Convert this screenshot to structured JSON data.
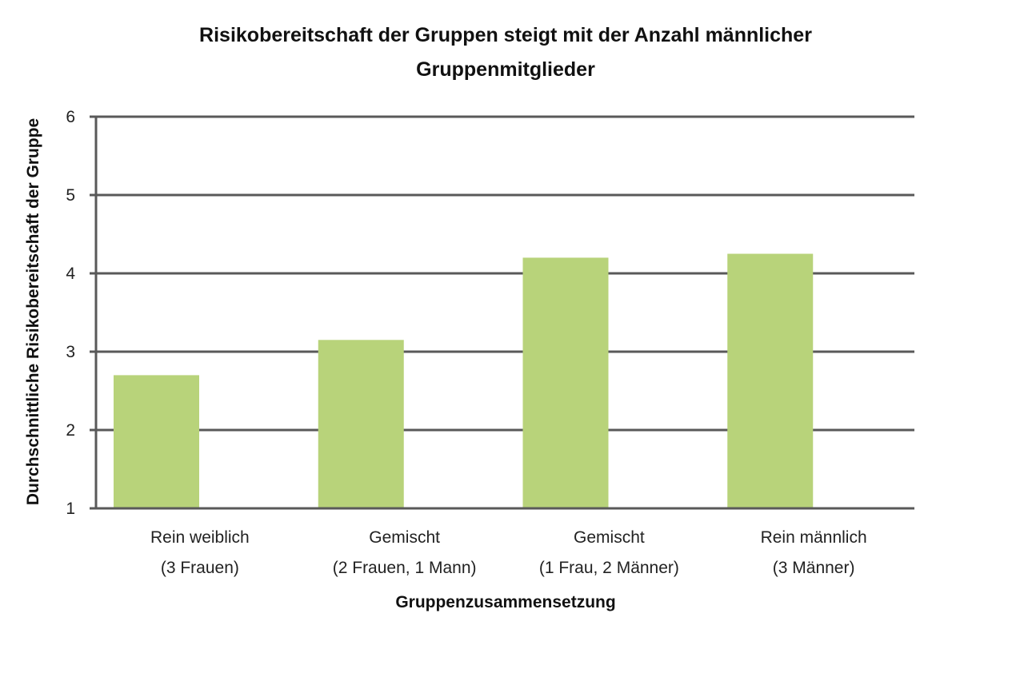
{
  "chart_data": {
    "type": "bar",
    "title_lines": [
      "Risikobereitschaft der Gruppen steigt mit der Anzahl männlicher",
      "Gruppenmitglieder"
    ],
    "xlabel": "Gruppenzusammensetzung",
    "ylabel": "Durchschnittliche Risikobereitschaft der Gruppe",
    "categories": [
      [
        "Rein weiblich",
        "(3 Frauen)"
      ],
      [
        "Gemischt",
        "(2 Frauen, 1 Mann)"
      ],
      [
        "Gemischt",
        "(1 Frau, 2 Männer)"
      ],
      [
        "Rein männlich",
        "(3 Männer)"
      ]
    ],
    "values": [
      2.7,
      3.15,
      4.2,
      4.25
    ],
    "ylim": [
      1,
      6
    ],
    "yticks": [
      "1",
      "2",
      "3",
      "4",
      "5",
      "6"
    ],
    "grid": true,
    "bar_color": "#b8d37a",
    "grid_color": "#595959"
  }
}
